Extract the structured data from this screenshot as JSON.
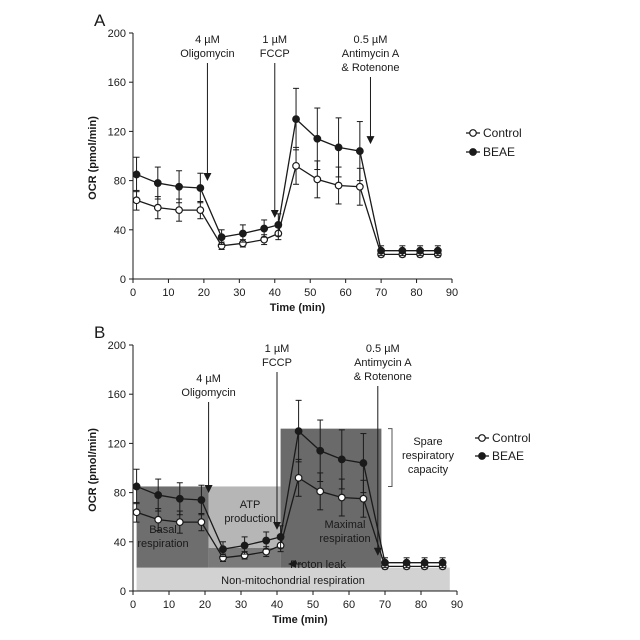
{
  "chart_data": [
    {
      "type": "line",
      "panel": "A",
      "x": [
        1,
        7,
        13,
        19,
        25,
        31,
        37,
        41,
        46,
        52,
        58,
        64,
        70,
        76,
        81,
        86
      ],
      "series": [
        {
          "name": "Control",
          "marker": "open-circle",
          "values": [
            64,
            58,
            56,
            56,
            27,
            29,
            32,
            37,
            92,
            81,
            76,
            75,
            20,
            20,
            20,
            20
          ],
          "errors": [
            8,
            9,
            9,
            7,
            3,
            3,
            4,
            5,
            15,
            15,
            15,
            15,
            2,
            2,
            2,
            2
          ]
        },
        {
          "name": "BEAE",
          "marker": "filled-circle",
          "values": [
            85,
            78,
            75,
            74,
            34,
            37,
            41,
            44,
            130,
            114,
            107,
            104,
            23,
            23,
            23,
            23
          ],
          "errors": [
            14,
            13,
            13,
            12,
            6,
            7,
            7,
            9,
            25,
            25,
            24,
            24,
            4,
            4,
            4,
            4
          ]
        }
      ],
      "xlabel": "Time (min)",
      "ylabel": "OCR (pmol/min)",
      "xlim": [
        0,
        90
      ],
      "ylim": [
        0,
        200
      ],
      "xticks": [
        0,
        10,
        20,
        30,
        40,
        50,
        60,
        70,
        80,
        90
      ],
      "yticks": [
        0,
        40,
        80,
        120,
        160,
        200
      ],
      "grid": false,
      "legend_position": "right",
      "injections": [
        {
          "x": 21,
          "lines": [
            "4 µM",
            "Oligomycin"
          ]
        },
        {
          "x": 40,
          "lines": [
            "1 µM",
            "FCCP"
          ]
        },
        {
          "x": 67,
          "lines": [
            "0.5 µM",
            "Antimycin A",
            "& Rotenone"
          ]
        }
      ]
    },
    {
      "type": "line",
      "panel": "B",
      "x": [
        1,
        7,
        13,
        19,
        25,
        31,
        37,
        41,
        46,
        52,
        58,
        64,
        70,
        76,
        81,
        86
      ],
      "series": [
        {
          "name": "Control",
          "marker": "open-circle",
          "values": [
            64,
            58,
            56,
            56,
            27,
            29,
            32,
            37,
            92,
            81,
            76,
            75,
            20,
            20,
            20,
            20
          ],
          "errors": [
            8,
            9,
            9,
            7,
            3,
            3,
            4,
            5,
            15,
            15,
            15,
            15,
            2,
            2,
            2,
            2
          ]
        },
        {
          "name": "BEAE",
          "marker": "filled-circle",
          "values": [
            85,
            78,
            75,
            74,
            34,
            37,
            41,
            44,
            130,
            114,
            107,
            104,
            23,
            23,
            23,
            23
          ],
          "errors": [
            14,
            13,
            13,
            12,
            6,
            7,
            7,
            9,
            25,
            25,
            24,
            24,
            4,
            4,
            4,
            4
          ]
        }
      ],
      "xlabel": "Time (min)",
      "ylabel": "OCR (pmol/min)",
      "xlim": [
        0,
        90
      ],
      "ylim": [
        0,
        200
      ],
      "xticks": [
        0,
        10,
        20,
        30,
        40,
        50,
        60,
        70,
        80,
        90
      ],
      "yticks": [
        0,
        40,
        80,
        120,
        160,
        200
      ],
      "grid": false,
      "legend_position": "right",
      "injections": [
        {
          "x": 21,
          "lines": [
            "4 µM",
            "Oligomycin"
          ]
        },
        {
          "x": 40,
          "lines": [
            "1 µM",
            "FCCP"
          ]
        },
        {
          "x": 68,
          "lines": [
            "0.5 µM",
            "Antimycin A",
            "& Rotenone"
          ]
        }
      ],
      "regions": [
        {
          "name": "Non-mitochondrial respiration",
          "x": [
            1,
            88
          ],
          "y": [
            0,
            19
          ],
          "color": "#d2d2d2",
          "lines": [
            "Non-mitochondrial respiration"
          ]
        },
        {
          "name": "Basal respiration",
          "x": [
            1,
            21
          ],
          "y": [
            19,
            85
          ],
          "color": "#6e6e6e",
          "lines": [
            "Basal",
            "respiration"
          ]
        },
        {
          "name": "ATP production",
          "x": [
            21,
            41
          ],
          "y": [
            35,
            85
          ],
          "color": "#b6b6b6",
          "lines": [
            "ATP",
            "production"
          ]
        },
        {
          "name": "Proton leak",
          "x": [
            21,
            41
          ],
          "y": [
            19,
            35
          ],
          "color": "#7a7a7a",
          "lines": [
            "Proton leak"
          ]
        },
        {
          "name": "Maximal respiration",
          "x": [
            41,
            69
          ],
          "y": [
            19,
            132
          ],
          "color": "#6a6a6a",
          "lines": [
            "Maximal",
            "respiration"
          ]
        }
      ],
      "bracket": {
        "y": [
          85,
          132
        ],
        "lines": [
          "Spare",
          "respiratory",
          "capacity"
        ]
      }
    }
  ],
  "panels": {
    "A": {
      "letter": "A"
    },
    "B": {
      "letter": "B"
    }
  },
  "colors": {
    "axis": "#1a1a1a",
    "line": "#1a1a1a",
    "text": "#1a1a1a",
    "background": "#ffffff"
  }
}
